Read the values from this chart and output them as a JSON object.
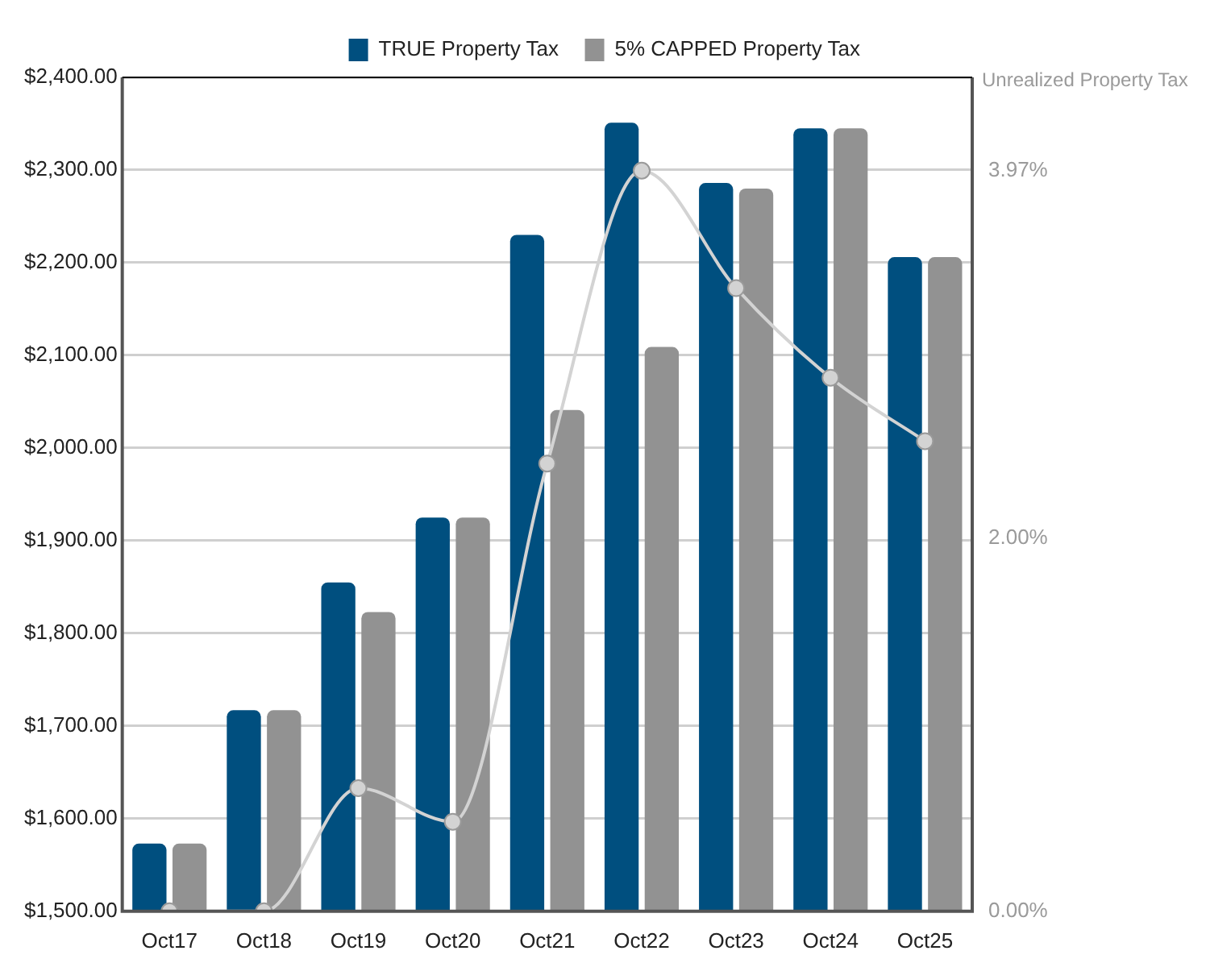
{
  "chart_data": {
    "type": "bar",
    "y2label": "Unrealized Property Tax",
    "categories": [
      "Oct17",
      "Oct18",
      "Oct19",
      "Oct20",
      "Oct21",
      "Oct22",
      "Oct23",
      "Oct24",
      "Oct25"
    ],
    "series": [
      {
        "name": "TRUE Property Tax",
        "color": "#004f7f",
        "values": [
          1573,
          1717,
          1855,
          1925,
          2230,
          2351,
          2286,
          2345,
          2206
        ]
      },
      {
        "name": "5% CAPPED Property Tax",
        "color": "#929292",
        "values": [
          1573,
          1717,
          1823,
          1925,
          2041,
          2109,
          2280,
          2345,
          2206
        ]
      },
      {
        "type": "line",
        "axis": "y2",
        "color": "#d3d3d3",
        "values": [
          0,
          0,
          0.66,
          0.48,
          2.4,
          3.97,
          3.34,
          2.86,
          2.52
        ]
      }
    ],
    "ylim": [
      1500,
      2400
    ],
    "yticks": [
      {
        "value": 1500,
        "label": "$1,500.00"
      },
      {
        "value": 1600,
        "label": "$1,600.00"
      },
      {
        "value": 1700,
        "label": "$1,700.00"
      },
      {
        "value": 1800,
        "label": "$1,800.00"
      },
      {
        "value": 1900,
        "label": "$1,900.00"
      },
      {
        "value": 2000,
        "label": "$2,000.00"
      },
      {
        "value": 2100,
        "label": "$2,100.00"
      },
      {
        "value": 2200,
        "label": "$2,200.00"
      },
      {
        "value": 2300,
        "label": "$2,300.00"
      },
      {
        "value": 2400,
        "label": "$2,400.00"
      }
    ],
    "y2lim": [
      0,
      4.47
    ],
    "y2ticks": [
      {
        "value": 0,
        "label": "0.00%"
      },
      {
        "value": 2,
        "label": "2.00%"
      },
      {
        "value": 3.97,
        "label": "3.97%"
      }
    ],
    "grid": "y",
    "legend": "top",
    "marker": "circle"
  }
}
